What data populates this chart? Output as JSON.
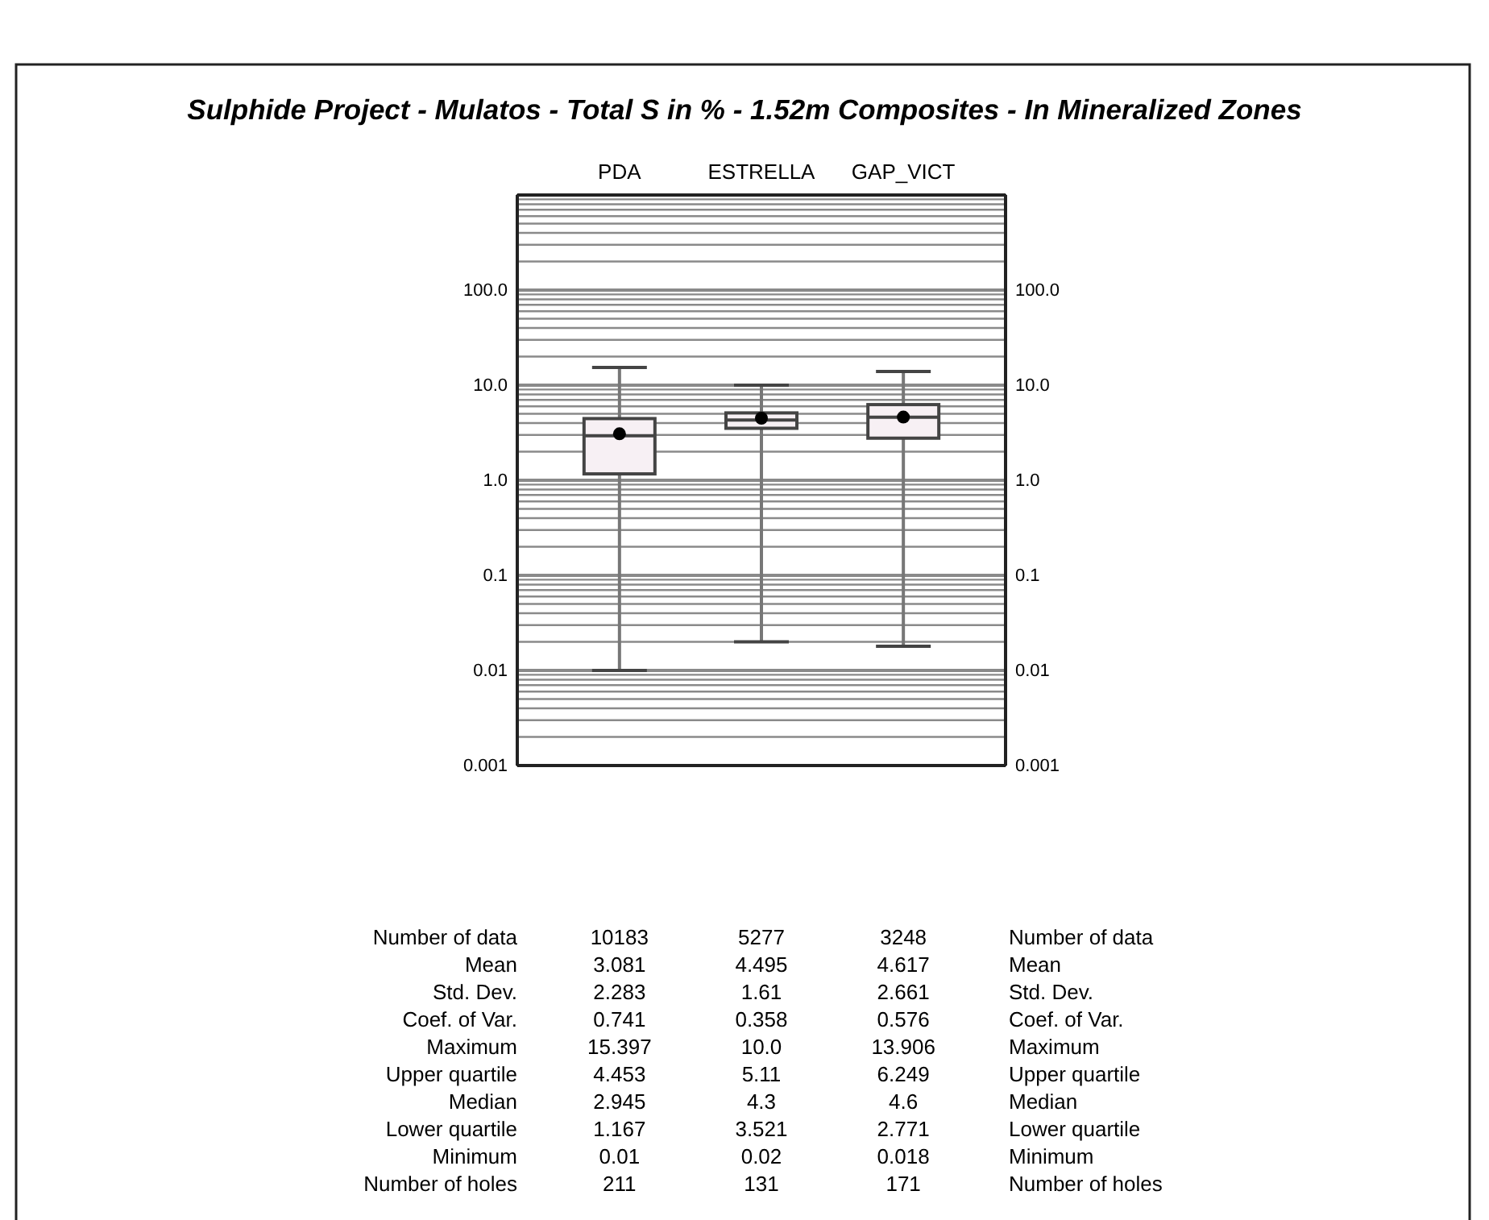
{
  "chart_data": [
    {
      "type": "box",
      "title": "Sulphide Project - Mulatos - Total S in % - 1.52m Composites - In Mineralized Zones",
      "categories": [
        "PDA",
        "ESTRELLA",
        "GAP_VICT"
      ],
      "color": "#f7f0f4",
      "boxes": [
        {
          "low": 0.01,
          "q1": 1.167,
          "median": 2.945,
          "q3": 4.453,
          "high": 15.397,
          "mean": 3.081
        },
        {
          "low": 0.02,
          "q1": 3.521,
          "median": 4.3,
          "q3": 5.11,
          "high": 10.0,
          "mean": 4.495
        },
        {
          "low": 0.018,
          "q1": 2.771,
          "median": 4.6,
          "q3": 6.249,
          "high": 13.906,
          "mean": 4.617
        }
      ],
      "log": "y",
      "grid": "y",
      "ylim": [
        0.001,
        1000
      ],
      "yticks": [
        {
          "value": 0.001,
          "label": "0.001"
        },
        {
          "value": 0.01,
          "label": "0.01"
        },
        {
          "value": 0.1,
          "label": "0.1"
        },
        {
          "value": 1,
          "label": "1.0"
        },
        {
          "value": 10,
          "label": "10.0"
        },
        {
          "value": 100,
          "label": "100.0"
        }
      ]
    },
    {
      "type": "other",
      "categories": [
        "Number of data",
        "Mean",
        "Std. Dev.",
        "Coef. of Var.",
        "Maximum",
        "Upper quartile",
        "Median",
        "Lower quartile",
        "Minimum",
        "Number of holes"
      ],
      "data_labels": true,
      "series": [
        {
          "values": [
            10183,
            3.081,
            2.283,
            0.741,
            15.397,
            4.453,
            2.945,
            1.167,
            0.01,
            211
          ]
        },
        {
          "values": [
            5277,
            4.495,
            1.61,
            0.358,
            10.0,
            5.11,
            4.3,
            3.521,
            0.02,
            131
          ],
          "value_labels": [
            "5277",
            "4.495",
            "1.61",
            "0.358",
            "10.0",
            "5.11",
            "4.3",
            "3.521",
            "0.02",
            "131"
          ]
        },
        {
          "values": [
            3248,
            4.617,
            2.661,
            0.576,
            13.906,
            6.249,
            4.6,
            2.771,
            0.018,
            171
          ]
        }
      ]
    }
  ]
}
